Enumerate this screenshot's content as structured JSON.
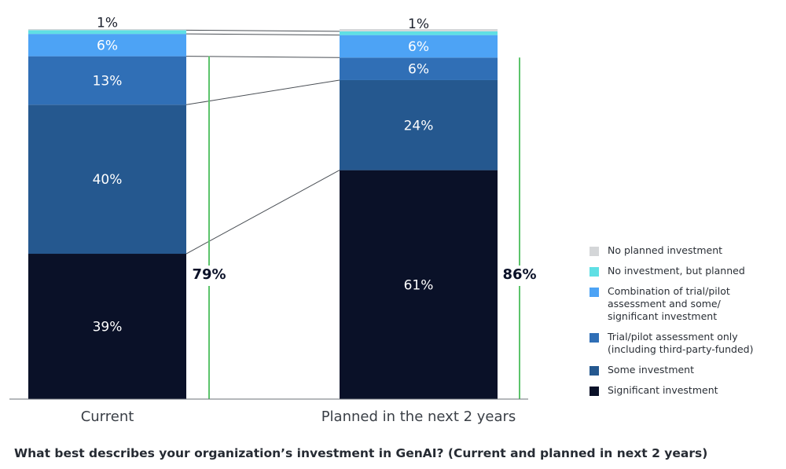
{
  "chart_data": {
    "type": "bar",
    "stacked": true,
    "title": "What best describes your organization’s investment in GenAI? (Current and planned in next 2 years)",
    "xlabel": "",
    "ylabel": "",
    "ylim": [
      0,
      100
    ],
    "grid": false,
    "legend_position": "right",
    "categories": [
      "Current",
      "Planned in the next 2 years"
    ],
    "series": [
      {
        "name": "Significant investment",
        "color": "#0a1128",
        "values": [
          39,
          61
        ],
        "labels": [
          "39%",
          "61%"
        ]
      },
      {
        "name": "Some investment",
        "color": "#25588f",
        "values": [
          40,
          24
        ],
        "labels": [
          "40%",
          "24%"
        ]
      },
      {
        "name": "Trial/pilot assessment only (including third-party-funded)",
        "color": "#306fb6",
        "values": [
          13,
          6
        ],
        "labels": [
          "13%",
          "6%"
        ]
      },
      {
        "name": "Combination of trial/pilot assessment and some/ significant investment",
        "color": "#4da3f5",
        "values": [
          6,
          6
        ],
        "labels": [
          "6%",
          "6%"
        ]
      },
      {
        "name": "No investment, but planned",
        "color": "#5fdfe4",
        "values": [
          1,
          1
        ],
        "labels": [
          "1%",
          "1%"
        ]
      },
      {
        "name": "No planned investment",
        "color": "#d4d6d8",
        "values": [
          0.3,
          0.6
        ],
        "labels": [
          "",
          ""
        ]
      }
    ],
    "totals": [
      {
        "category": "Current",
        "label": "79%",
        "value": 79
      },
      {
        "category": "Planned in the next 2 years",
        "label": "86%",
        "value": 86
      }
    ],
    "accent_colors": {
      "total_bracket": "#5cc46b",
      "connector": "#4a4f55",
      "axis": "#6b7077"
    }
  },
  "legend": [
    {
      "label": "No planned investment",
      "color": "#d4d6d8"
    },
    {
      "label": "No investment, but planned",
      "color": "#5fdfe4"
    },
    {
      "label": "Combination of trial/pilot assessment and some/ significant investment",
      "color": "#4da3f5"
    },
    {
      "label": "Trial/pilot assessment only (including third-party-funded)",
      "color": "#306fb6"
    },
    {
      "label": "Some investment",
      "color": "#25588f"
    },
    {
      "label": "Significant investment",
      "color": "#0a1128"
    }
  ],
  "caption": "What best describes your organization’s investment in GenAI? (Current and planned in next 2 years)"
}
